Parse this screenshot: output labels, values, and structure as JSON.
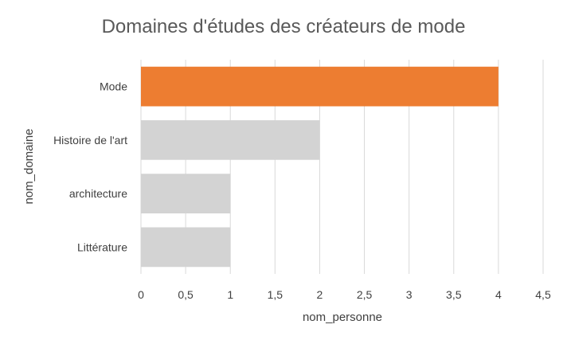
{
  "chart_data": {
    "type": "bar",
    "orientation": "horizontal",
    "title": "Domaines d'études des créateurs de mode",
    "xlabel": "nom_personne",
    "ylabel": "nom_domaine",
    "categories": [
      "Mode",
      "Histoire de l'art",
      "architecture",
      "Littérature"
    ],
    "values": [
      4,
      2,
      1,
      1
    ],
    "colors": [
      "#ed7d31",
      "#d3d3d3",
      "#d3d3d3",
      "#d3d3d3"
    ],
    "xlim": [
      0,
      4.5
    ],
    "xticks": [
      "0",
      "0,5",
      "1",
      "1,5",
      "2",
      "2,5",
      "3",
      "3,5",
      "4",
      "4,5"
    ],
    "grid": true,
    "legend": "none"
  }
}
